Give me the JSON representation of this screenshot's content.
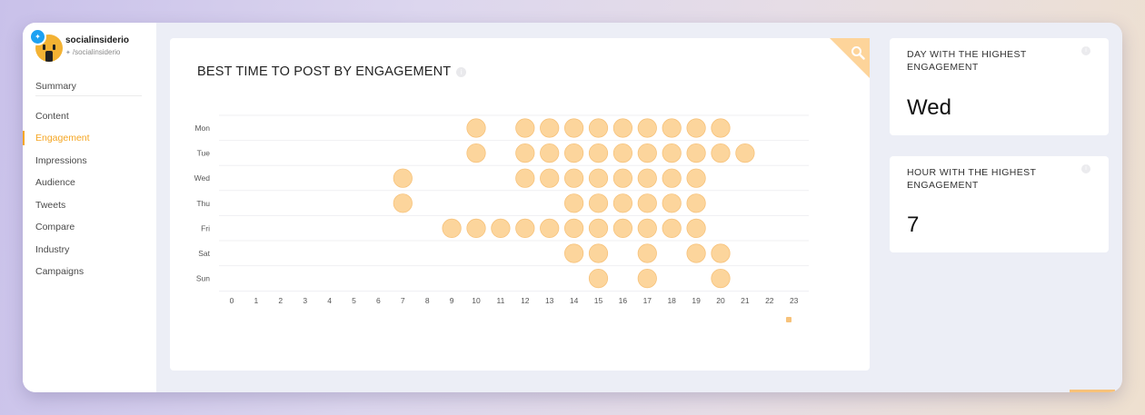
{
  "profile": {
    "name": "socialinsiderio",
    "handle": "/socialinsiderio",
    "network_icon": "twitter-icon"
  },
  "nav": {
    "items": [
      {
        "label": "Summary",
        "active": false
      },
      {
        "label": "Content",
        "active": false
      },
      {
        "label": "Engagement",
        "active": true
      },
      {
        "label": "Impressions",
        "active": false
      },
      {
        "label": "Audience",
        "active": false
      },
      {
        "label": "Tweets",
        "active": false
      },
      {
        "label": "Compare",
        "active": false
      },
      {
        "label": "Industry",
        "active": false
      },
      {
        "label": "Campaigns",
        "active": false
      }
    ]
  },
  "main_card": {
    "title": "BEST TIME TO POST BY ENGAGEMENT",
    "info_icon": "info-icon",
    "corner_icon": "search-icon"
  },
  "chart_data": {
    "type": "scatter",
    "title": "BEST TIME TO POST BY ENGAGEMENT",
    "days": [
      "Mon",
      "Tue",
      "Wed",
      "Thu",
      "Fri",
      "Sat",
      "Sun"
    ],
    "hours": [
      0,
      1,
      2,
      3,
      4,
      5,
      6,
      7,
      8,
      9,
      10,
      11,
      12,
      13,
      14,
      15,
      16,
      17,
      18,
      19,
      20,
      21,
      22,
      23
    ],
    "points": {
      "Mon": [
        10,
        12,
        13,
        14,
        15,
        16,
        17,
        18,
        19,
        20
      ],
      "Tue": [
        10,
        12,
        13,
        14,
        15,
        16,
        17,
        18,
        19,
        20,
        21
      ],
      "Wed": [
        7,
        12,
        13,
        14,
        15,
        16,
        17,
        18,
        19
      ],
      "Thu": [
        7,
        14,
        15,
        16,
        17,
        18,
        19
      ],
      "Fri": [
        9,
        10,
        11,
        12,
        13,
        14,
        15,
        16,
        17,
        18,
        19
      ],
      "Sat": [
        14,
        15,
        17,
        19,
        20
      ],
      "Sun": [
        15,
        17,
        20
      ]
    },
    "marker_color": "#fcd59c",
    "marker_stroke": "#f7c27a",
    "grid": true
  },
  "highlights": {
    "day": {
      "label": "DAY WITH THE HIGHEST ENGAGEMENT",
      "value": "Wed"
    },
    "hour": {
      "label": "HOUR WITH THE HIGHEST ENGAGEMENT",
      "value": "7"
    }
  },
  "colors": {
    "accent": "#f5a623",
    "twitter": "#1da1f2"
  }
}
